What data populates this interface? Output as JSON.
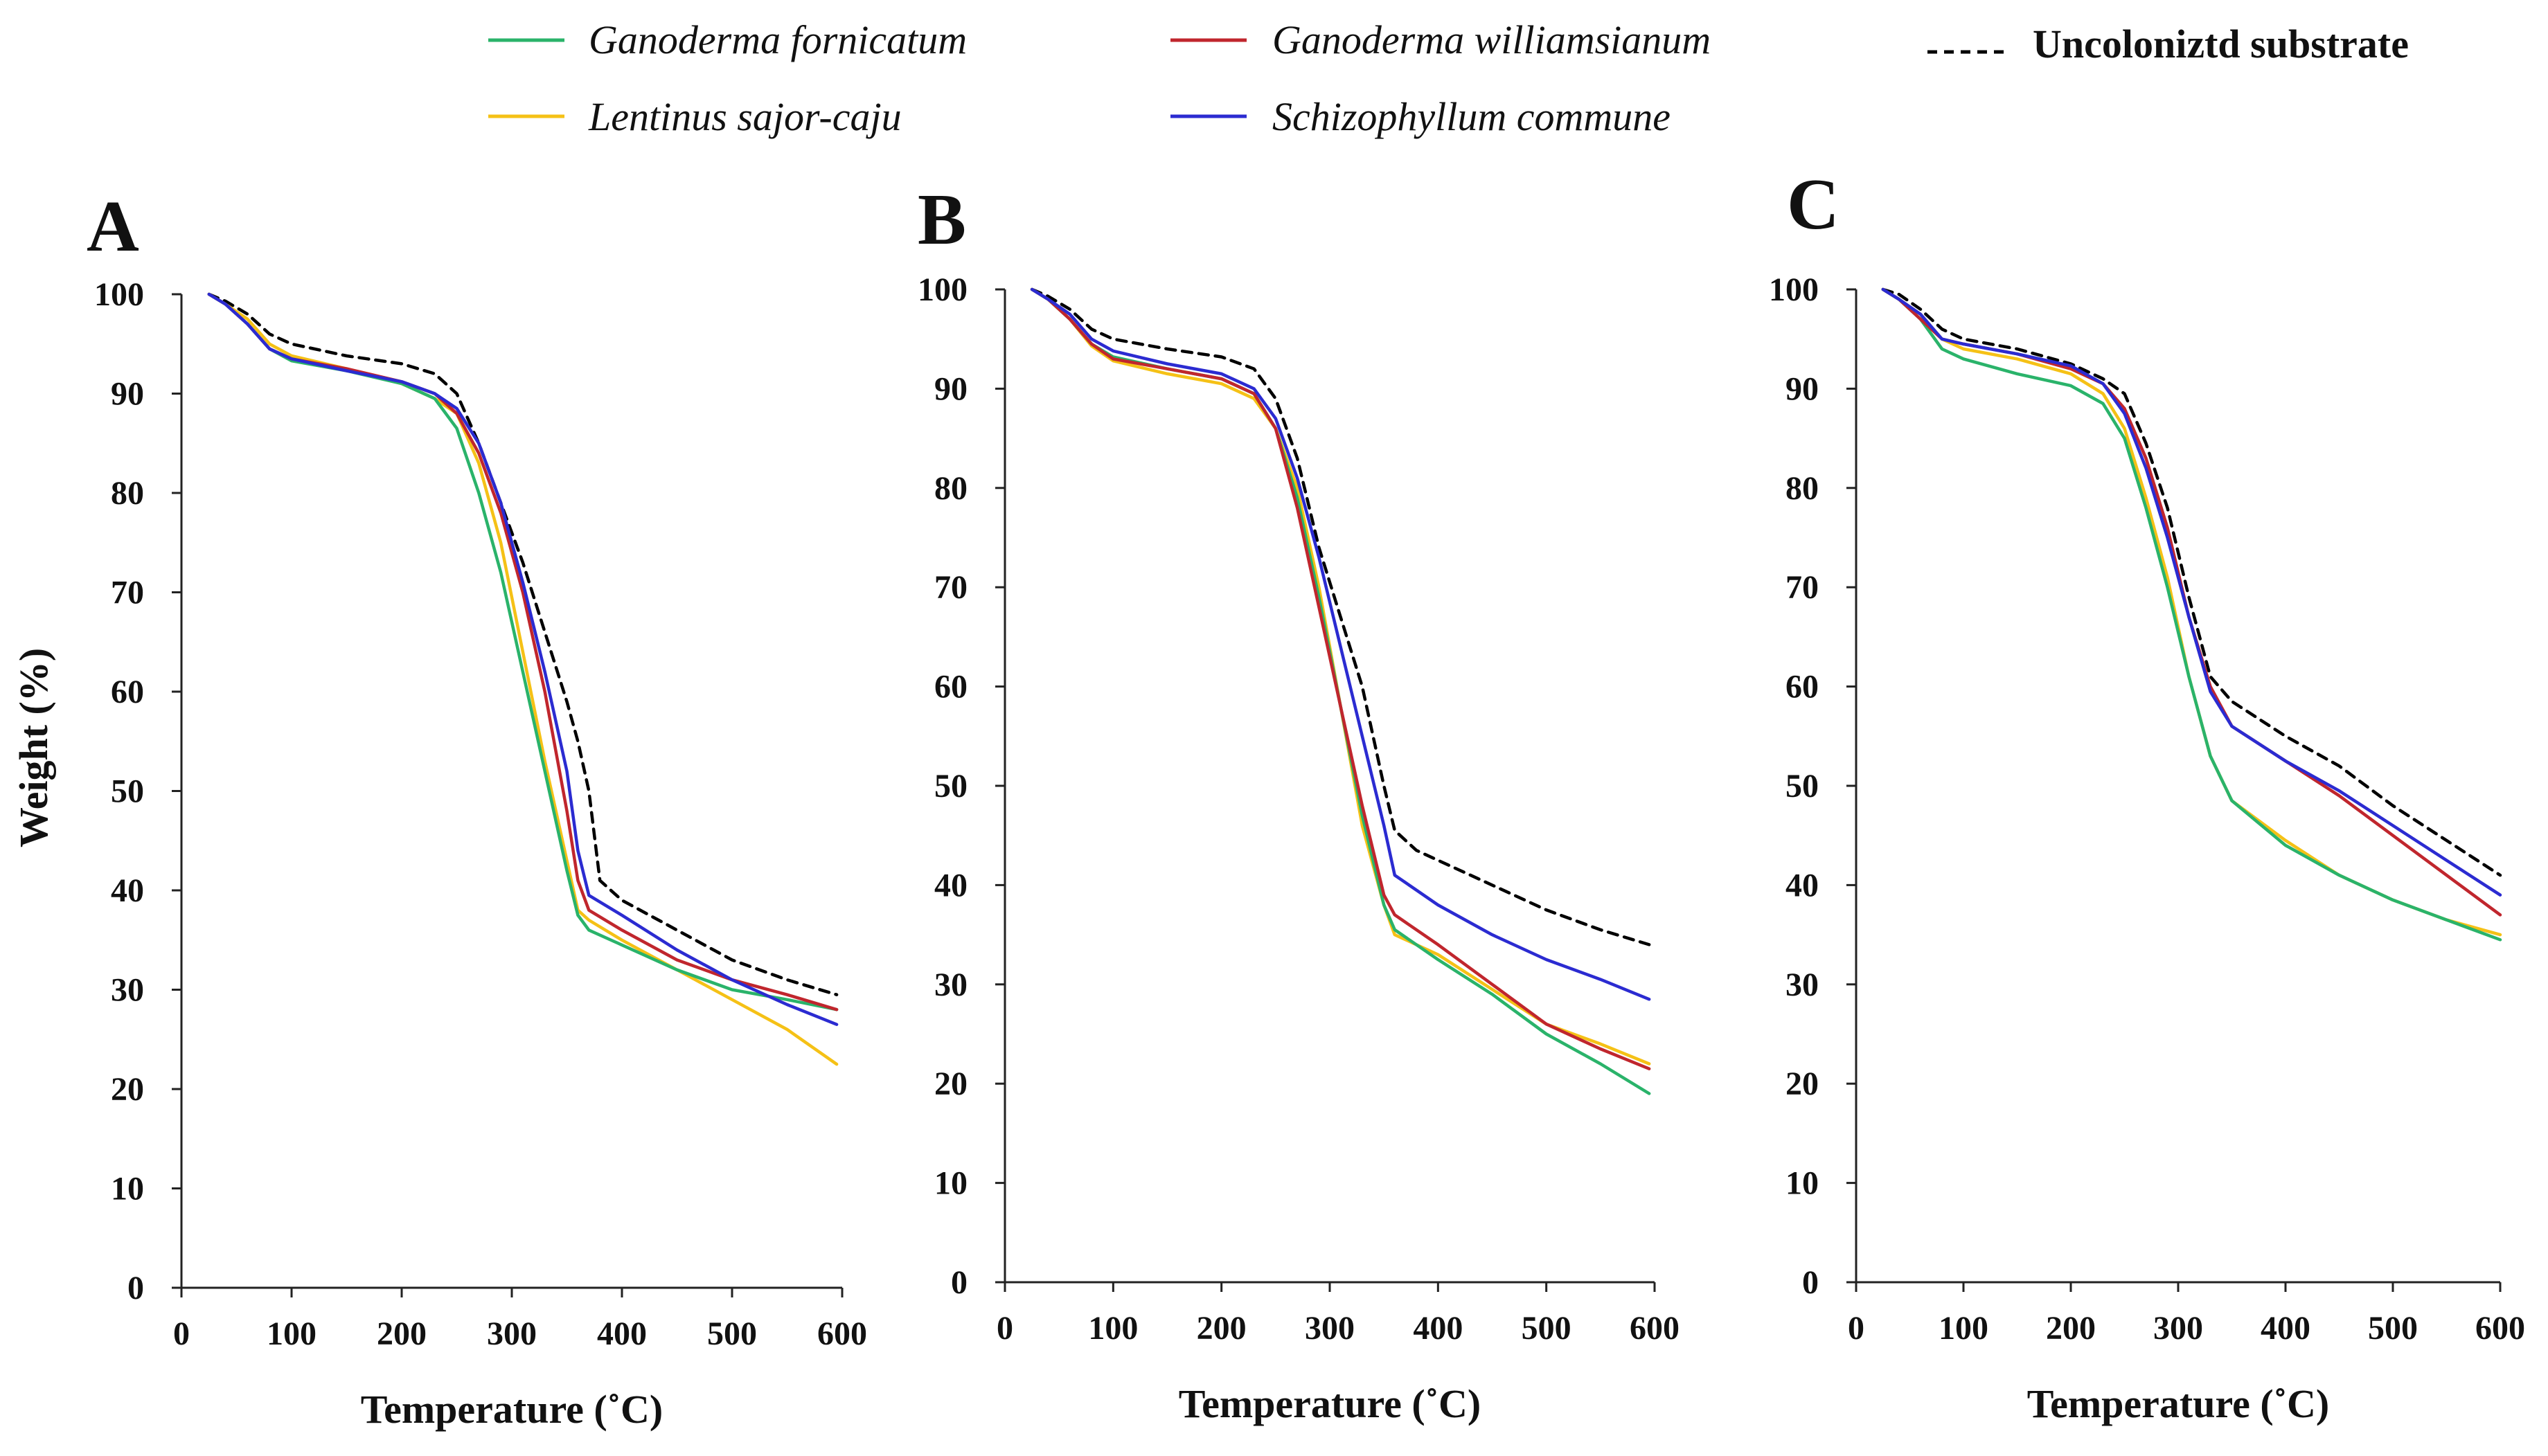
{
  "legend": [
    {
      "id": "gf",
      "label": "Ganoderma fornicatum",
      "color": "#2ab36a",
      "style": "solid",
      "italic": true
    },
    {
      "id": "gw",
      "label": "Ganoderma williamsianum",
      "color": "#c0262d",
      "style": "solid",
      "italic": true
    },
    {
      "id": "uc",
      "label": "Uncoloniztd substrate",
      "color": "#000000",
      "style": "dashed",
      "italic": false
    },
    {
      "id": "ls",
      "label": "Lentinus sajor-caju",
      "color": "#f5c116",
      "style": "solid",
      "italic": true
    },
    {
      "id": "sc",
      "label": "Schizophyllum commune",
      "color": "#2b2bd1",
      "style": "solid",
      "italic": true
    }
  ],
  "chart_data": [
    {
      "type": "line",
      "panel": "A",
      "xlabel": "Temperature (˚C)",
      "ylabel": "Weight  (%)",
      "xlim": [
        0,
        600
      ],
      "ylim": [
        0,
        100
      ],
      "xticks": [
        0,
        100,
        200,
        300,
        400,
        500,
        600
      ],
      "yticks": [
        0,
        10,
        20,
        30,
        40,
        50,
        60,
        70,
        80,
        90,
        100
      ],
      "grid": false,
      "series": [
        {
          "id": "gf",
          "name": "Ganoderma fornicatum",
          "x": [
            25,
            40,
            60,
            80,
            100,
            150,
            200,
            230,
            250,
            270,
            290,
            310,
            330,
            350,
            360,
            370,
            400,
            450,
            500,
            550,
            595
          ],
          "y": [
            100,
            99,
            97,
            94.5,
            93.3,
            92.3,
            91,
            89.5,
            86.5,
            80,
            72,
            62,
            52,
            42,
            37.5,
            36,
            34.5,
            32,
            30,
            29,
            28
          ]
        },
        {
          "id": "gw",
          "name": "Ganoderma williamsianum",
          "x": [
            25,
            40,
            60,
            80,
            100,
            150,
            200,
            230,
            250,
            270,
            290,
            310,
            330,
            350,
            360,
            370,
            400,
            450,
            500,
            550,
            595
          ],
          "y": [
            100,
            99,
            97,
            94.5,
            93.5,
            92.5,
            91.2,
            90,
            88,
            84,
            78,
            70,
            60,
            48,
            41,
            38,
            36,
            33,
            31,
            29.5,
            28
          ]
        },
        {
          "id": "ls",
          "name": "Lentinus sajor-caju",
          "x": [
            25,
            40,
            60,
            80,
            100,
            150,
            200,
            230,
            250,
            270,
            290,
            310,
            330,
            350,
            360,
            370,
            400,
            450,
            500,
            550,
            595
          ],
          "y": [
            100,
            99,
            97.5,
            95,
            93.8,
            92.5,
            91,
            89.5,
            88,
            83,
            75,
            64,
            53,
            43,
            38,
            37,
            35,
            32,
            29,
            26,
            22.5
          ]
        },
        {
          "id": "sc",
          "name": "Schizophyllum commune",
          "x": [
            25,
            40,
            60,
            80,
            100,
            150,
            200,
            230,
            250,
            270,
            290,
            310,
            330,
            350,
            360,
            370,
            400,
            450,
            500,
            550,
            595
          ],
          "y": [
            100,
            99,
            97,
            94.5,
            93.5,
            92.3,
            91.2,
            90,
            88.5,
            85,
            79,
            71,
            62,
            52,
            44,
            39.5,
            37.5,
            34,
            31,
            28.5,
            26.5
          ]
        },
        {
          "id": "uc",
          "name": "Uncoloniztd substrate",
          "x": [
            25,
            40,
            60,
            80,
            100,
            150,
            200,
            230,
            250,
            270,
            290,
            310,
            330,
            350,
            360,
            370,
            380,
            400,
            450,
            500,
            550,
            595
          ],
          "y": [
            100,
            99.3,
            98,
            96,
            95,
            93.8,
            93,
            92,
            90,
            85,
            79,
            73,
            66,
            59,
            55,
            50,
            41,
            39,
            36,
            33,
            31,
            29.5
          ]
        }
      ]
    },
    {
      "type": "line",
      "panel": "B",
      "xlabel": "Temperature (˚C)",
      "ylabel": "",
      "xlim": [
        0,
        600
      ],
      "ylim": [
        0,
        100
      ],
      "xticks": [
        0,
        100,
        200,
        300,
        400,
        500,
        600
      ],
      "yticks": [
        0,
        10,
        20,
        30,
        40,
        50,
        60,
        70,
        80,
        90,
        100
      ],
      "grid": false,
      "series": [
        {
          "id": "gf",
          "name": "Ganoderma fornicatum",
          "x": [
            25,
            40,
            60,
            80,
            100,
            150,
            200,
            230,
            250,
            270,
            290,
            310,
            330,
            350,
            360,
            400,
            450,
            500,
            550,
            595
          ],
          "y": [
            100,
            99,
            97,
            94.5,
            93.2,
            92,
            91,
            89.5,
            86,
            79,
            69,
            58,
            47,
            38,
            35.5,
            32.5,
            29,
            25,
            22,
            19
          ]
        },
        {
          "id": "gw",
          "name": "Ganoderma williamsianum",
          "x": [
            25,
            40,
            60,
            80,
            100,
            150,
            200,
            230,
            250,
            270,
            290,
            310,
            330,
            350,
            360,
            400,
            450,
            500,
            550,
            595
          ],
          "y": [
            100,
            99,
            97,
            94.5,
            93,
            92,
            91,
            89.5,
            86,
            78,
            68,
            58,
            48,
            39,
            37,
            34,
            30,
            26,
            23.5,
            21.5
          ]
        },
        {
          "id": "ls",
          "name": "Lentinus sajor-caju",
          "x": [
            25,
            40,
            60,
            80,
            100,
            150,
            200,
            230,
            250,
            270,
            290,
            310,
            330,
            350,
            360,
            400,
            450,
            500,
            550,
            595
          ],
          "y": [
            100,
            99,
            97,
            94.3,
            92.8,
            91.5,
            90.5,
            89,
            86,
            80,
            70,
            58,
            46,
            38,
            35,
            33,
            29.5,
            26,
            24,
            22
          ]
        },
        {
          "id": "sc",
          "name": "Schizophyllum commune",
          "x": [
            25,
            40,
            60,
            80,
            100,
            150,
            200,
            230,
            250,
            270,
            290,
            310,
            330,
            350,
            360,
            380,
            400,
            450,
            500,
            550,
            595
          ],
          "y": [
            100,
            99,
            97.5,
            95,
            93.8,
            92.5,
            91.5,
            90,
            87,
            81,
            73,
            64,
            55,
            46,
            41,
            39.5,
            38,
            35,
            32.5,
            30.5,
            28.5
          ]
        },
        {
          "id": "uc",
          "name": "Uncoloniztd substrate",
          "x": [
            25,
            40,
            60,
            80,
            100,
            150,
            200,
            230,
            250,
            270,
            290,
            310,
            330,
            350,
            360,
            380,
            400,
            450,
            500,
            550,
            595
          ],
          "y": [
            100,
            99.3,
            98,
            96,
            95,
            94,
            93.2,
            92,
            89,
            83,
            74,
            67,
            60,
            50,
            45.5,
            43.5,
            42.5,
            40,
            37.5,
            35.5,
            34
          ]
        }
      ]
    },
    {
      "type": "line",
      "panel": "C",
      "xlabel": "Temperature (˚C)",
      "ylabel": "",
      "xlim": [
        0,
        600
      ],
      "ylim": [
        0,
        100
      ],
      "xticks": [
        0,
        100,
        200,
        300,
        400,
        500,
        600
      ],
      "yticks": [
        0,
        10,
        20,
        30,
        40,
        50,
        60,
        70,
        80,
        90,
        100
      ],
      "grid": false,
      "series": [
        {
          "id": "gf",
          "name": "Ganoderma fornicatum",
          "x": [
            25,
            40,
            60,
            80,
            100,
            150,
            200,
            230,
            250,
            270,
            290,
            310,
            330,
            350,
            400,
            450,
            500,
            550,
            600
          ],
          "y": [
            100,
            99,
            97,
            94,
            93,
            91.5,
            90.3,
            88.5,
            85,
            78,
            70,
            61,
            53,
            48.5,
            44,
            41,
            38.5,
            36.5,
            34.5
          ]
        },
        {
          "id": "gw",
          "name": "Ganoderma williamsianum",
          "x": [
            25,
            40,
            60,
            80,
            100,
            150,
            200,
            230,
            250,
            270,
            290,
            310,
            330,
            350,
            400,
            450,
            500,
            550,
            600
          ],
          "y": [
            100,
            99,
            97,
            95,
            94.5,
            93.5,
            92,
            90.5,
            88,
            83,
            76,
            67,
            60,
            56,
            52.5,
            49,
            45,
            41,
            37
          ]
        },
        {
          "id": "ls",
          "name": "Lentinus sajor-caju",
          "x": [
            25,
            40,
            60,
            80,
            100,
            150,
            200,
            230,
            250,
            270,
            290,
            310,
            330,
            350,
            400,
            450,
            500,
            550,
            600
          ],
          "y": [
            100,
            99,
            97.5,
            95,
            94,
            93,
            91.5,
            89.5,
            86,
            79,
            71,
            61,
            53,
            48.5,
            44.5,
            41,
            38.5,
            36.5,
            35
          ]
        },
        {
          "id": "sc",
          "name": "Schizophyllum commune",
          "x": [
            25,
            40,
            60,
            80,
            100,
            150,
            200,
            230,
            250,
            270,
            290,
            310,
            330,
            350,
            400,
            450,
            500,
            550,
            600
          ],
          "y": [
            100,
            99,
            97.5,
            95,
            94.5,
            93.5,
            92.3,
            90.5,
            87.5,
            82,
            75,
            67,
            59.5,
            56,
            52.5,
            49.5,
            46,
            42.5,
            39
          ]
        },
        {
          "id": "uc",
          "name": "Uncoloniztd substrate",
          "x": [
            25,
            40,
            60,
            80,
            100,
            150,
            200,
            230,
            250,
            270,
            290,
            310,
            330,
            350,
            400,
            450,
            500,
            550,
            600
          ],
          "y": [
            100,
            99.5,
            98,
            96,
            95,
            94,
            92.5,
            91,
            89.5,
            84.5,
            78,
            69,
            61,
            58.5,
            55,
            52,
            48,
            44.5,
            41
          ]
        }
      ]
    }
  ]
}
